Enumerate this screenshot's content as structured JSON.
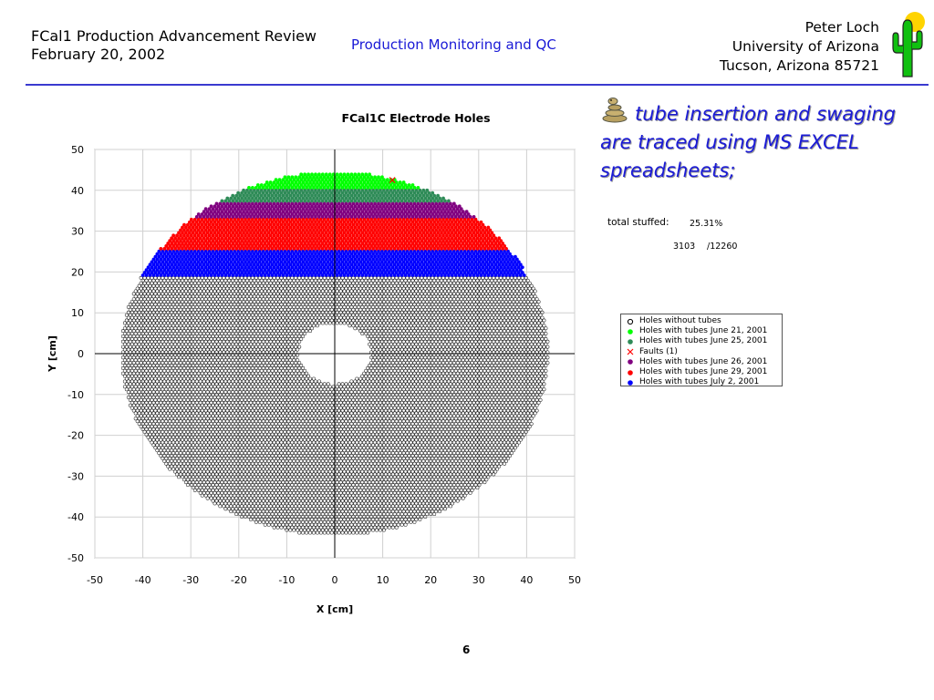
{
  "header": {
    "left_line1": "FCal1 Production Advancement Review",
    "left_line2": "February 20, 2002",
    "center": "Production Monitoring and QC",
    "right_line1": "Peter Loch",
    "right_line2": "University of Arizona",
    "right_line3": "Tucson, Arizona 85721"
  },
  "colors": {
    "accent": "#1a1ad6",
    "green": "#00ff00",
    "teal": "#2e8b57",
    "purple": "#800080",
    "red": "#ff0000",
    "blue": "#0000ff",
    "fault": "#ff0000"
  },
  "bullet": {
    "icon": "rattlesnake-icon",
    "text": "tube insertion and swaging are traced using MS EXCEL spreadsheets;"
  },
  "stats": {
    "label": "total stuffed:",
    "percent": "25.31%",
    "count": "3103",
    "total": "/12260"
  },
  "page_number": "6",
  "chart_data": {
    "type": "scatter",
    "title": "FCal1C Electrode Holes",
    "xlabel": "X [cm]",
    "ylabel": "Y [cm]",
    "xlim": [
      -50,
      50
    ],
    "ylim": [
      -50,
      50
    ],
    "xticks": [
      "-50",
      "-40",
      "-30",
      "-20",
      "-10",
      "0",
      "10",
      "20",
      "30",
      "40",
      "50"
    ],
    "yticks": [
      "50",
      "40",
      "30",
      "20",
      "10",
      "0",
      "-10",
      "-20",
      "-30",
      "-40",
      "-50"
    ],
    "grid": true,
    "legend_position": "right",
    "outer_radius_cm": 44.5,
    "inner_radius_cm": 7.5,
    "series": [
      {
        "name": "Holes without tubes",
        "marker": "open-circle",
        "color": "#000000",
        "y_range": [
          -44.5,
          19
        ]
      },
      {
        "name": "Holes with tubes June 21, 2001",
        "marker": "dot",
        "color": "#00ff00",
        "y_range": [
          40,
          44.5
        ]
      },
      {
        "name": "Holes with tubes June 25, 2001",
        "marker": "dot",
        "color": "#2e8b57",
        "y_range": [
          37,
          40
        ]
      },
      {
        "name": "Faults (1)",
        "marker": "x",
        "color": "#ff0000",
        "points": [
          [
            12,
            42.5
          ]
        ]
      },
      {
        "name": "Holes with tubes June 26, 2001",
        "marker": "dot",
        "color": "#800080",
        "y_range": [
          33,
          37
        ]
      },
      {
        "name": "Holes with tubes June 29, 2001",
        "marker": "dot",
        "color": "#ff0000",
        "y_range": [
          25.5,
          33
        ]
      },
      {
        "name": "Holes with tubes July 2, 2001",
        "marker": "dot",
        "color": "#0000ff",
        "y_range": [
          19,
          25.5
        ]
      }
    ]
  }
}
